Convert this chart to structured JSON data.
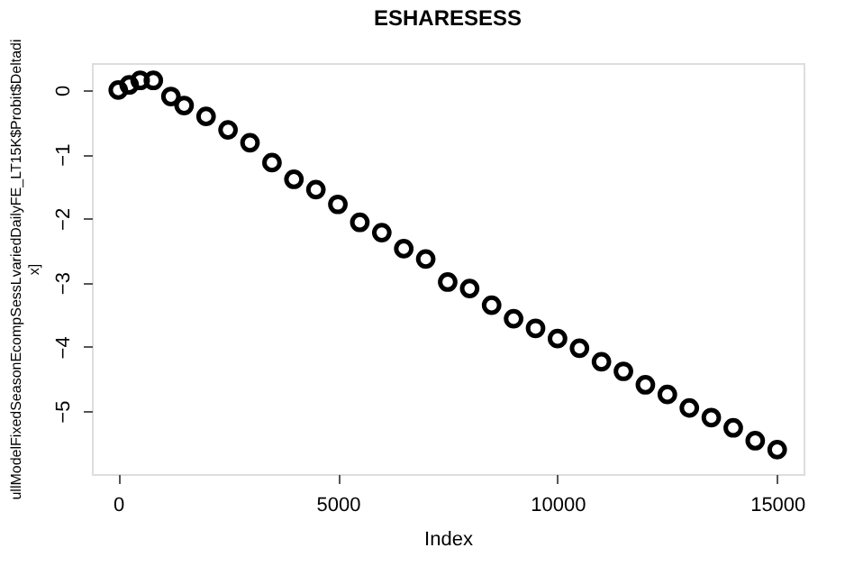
{
  "chart_data": {
    "type": "scatter",
    "title": "ESHARESESS",
    "xlabel": "Index",
    "ylabel": "ullModelFixedSeasonEcompSessLvariedDailyFE_LT15K$Probit$Deltadi\nx]",
    "x": [
      1,
      250,
      500,
      800,
      1200,
      1500,
      2000,
      2500,
      3000,
      3500,
      4000,
      4500,
      5000,
      5500,
      6000,
      6500,
      7000,
      7500,
      8000,
      8500,
      9000,
      9500,
      10000,
      10500,
      11000,
      11500,
      12000,
      12500,
      13000,
      13500,
      14000,
      14500,
      15000
    ],
    "values": [
      0,
      0.08,
      0.15,
      0.15,
      -0.1,
      -0.24,
      -0.41,
      -0.62,
      -0.82,
      -1.13,
      -1.39,
      -1.55,
      -1.78,
      -2.06,
      -2.22,
      -2.47,
      -2.63,
      -2.99,
      -3.09,
      -3.35,
      -3.56,
      -3.71,
      -3.87,
      -4.02,
      -4.23,
      -4.38,
      -4.59,
      -4.74,
      -4.95,
      -5.1,
      -5.26,
      -5.46,
      -5.6
    ],
    "color": "#000000",
    "marker": "circle",
    "grid": false,
    "xlim": [
      -599,
      15600
    ],
    "ylim": [
      -5.98,
      0.42
    ],
    "xticks": [
      0,
      5000,
      10000,
      15000
    ],
    "yticks": [
      -5,
      -4,
      -3,
      -2,
      -1,
      0
    ]
  }
}
